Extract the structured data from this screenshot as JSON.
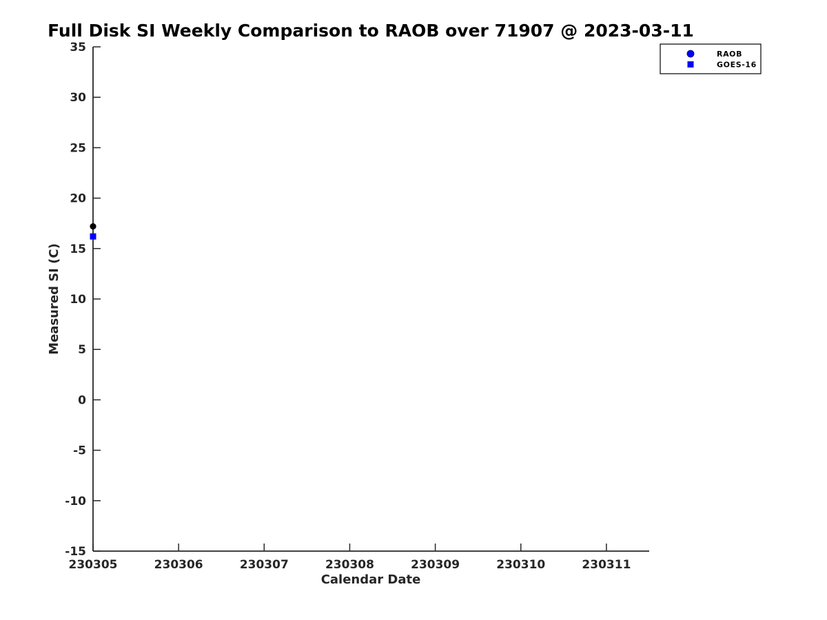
{
  "figure": {
    "background": "#ffffff"
  },
  "chart_data": {
    "type": "scatter",
    "title": "Full Disk SI Weekly Comparison to RAOB over 71907 @ 2023-03-11",
    "xlabel": "Calendar Date",
    "ylabel": "Measured SI (C)",
    "xlim": [
      230305,
      230311.5
    ],
    "ylim": [
      -15,
      35
    ],
    "x_ticks": [
      230305,
      230306,
      230307,
      230308,
      230309,
      230310,
      230311
    ],
    "y_ticks": [
      35,
      30,
      25,
      20,
      15,
      10,
      5,
      0,
      -5,
      -10,
      -15
    ],
    "grid": false,
    "legend_position": "top-right",
    "series": [
      {
        "name": "RAOB",
        "marker": "circle",
        "plot_color": "#000000",
        "legend_color": "#0000ff",
        "points": [
          {
            "x": 230305,
            "y": 17.2
          }
        ]
      },
      {
        "name": "GOES-16",
        "marker": "square",
        "plot_color": "#0000ff",
        "legend_color": "#0000ff",
        "points": [
          {
            "x": 230305,
            "y": 16.2
          }
        ]
      }
    ],
    "style": {
      "axis_color": "#262626",
      "tick_label_color": "#262626",
      "title_color": "#000000",
      "axis_label_color": "#262626",
      "legend_text_color": "#000000",
      "legend_border_color": "#000000",
      "legend_background": "#ffffff"
    }
  }
}
